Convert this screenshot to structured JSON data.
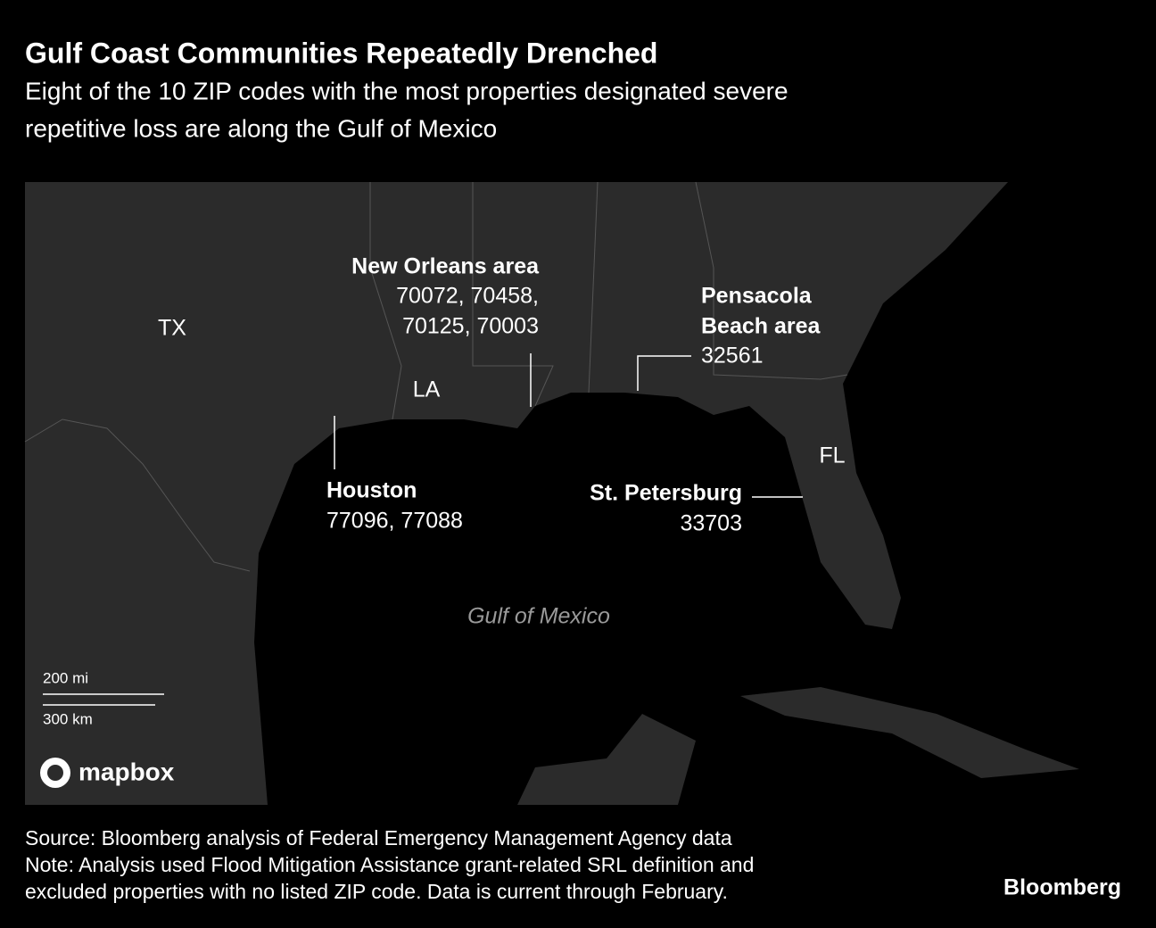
{
  "header": {
    "title": "Gulf Coast Communities Repeatedly Drenched",
    "subtitle_lines": [
      "Eight of the 10 ZIP codes with the most properties designated severe",
      "repetitive loss are along the Gulf of Mexico"
    ]
  },
  "map": {
    "state_labels": [
      "TX",
      "LA",
      "FL"
    ],
    "water_label": "Gulf of Mexico",
    "callouts": [
      {
        "name_lines": [
          "New Orleans area"
        ],
        "zip_lines": [
          "70072, 70458,",
          "70125, 70003"
        ]
      },
      {
        "name_lines": [
          "Pensacola",
          "Beach area"
        ],
        "zip_lines": [
          "32561"
        ]
      },
      {
        "name_lines": [
          "Houston"
        ],
        "zip_lines": [
          "77096, 77088"
        ]
      },
      {
        "name_lines": [
          "St. Petersburg"
        ],
        "zip_lines": [
          "33703"
        ]
      }
    ],
    "scale": {
      "miles": "200 mi",
      "km": "300 km"
    },
    "attribution": "mapbox"
  },
  "footer": {
    "source": "Source: Bloomberg analysis of Federal Emergency Management Agency data",
    "note_lines": [
      "Note: Analysis used Flood Mitigation Assistance grant-related SRL definition and",
      "excluded properties with no listed ZIP code. Data is current through February."
    ],
    "brand": "Bloomberg"
  }
}
